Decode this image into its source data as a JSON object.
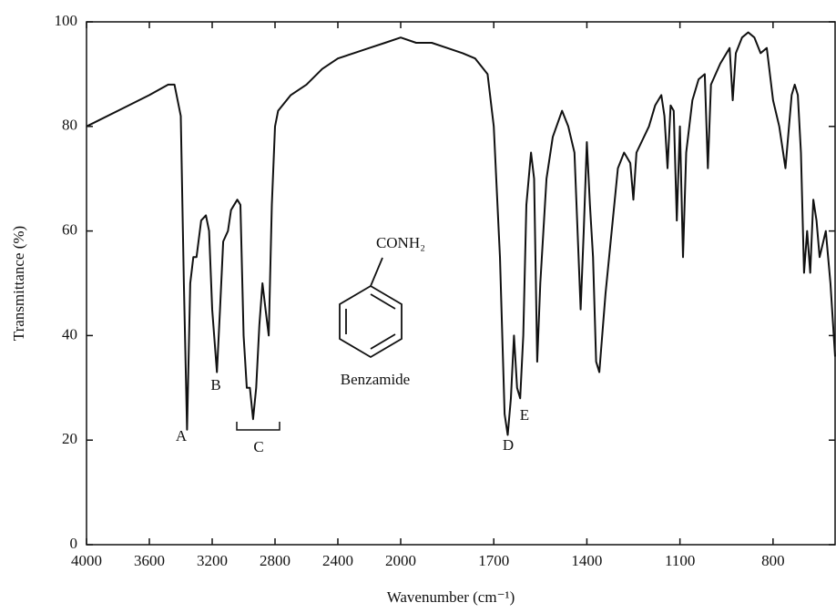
{
  "chart_data": {
    "type": "line",
    "xlabel": "Wavenumber (cm⁻¹)",
    "ylabel": "Transmittance (%)",
    "x_scale_change": 2000,
    "xlim": [
      4000,
      600
    ],
    "xticks": [
      4000,
      3600,
      3200,
      2800,
      2400,
      2000,
      1700,
      1400,
      1100,
      800
    ],
    "ylim": [
      0,
      100
    ],
    "yticks": [
      0,
      20,
      40,
      60,
      80,
      100
    ],
    "color": "#111111",
    "annotations": [
      "A",
      "B",
      "C",
      "D",
      "E",
      "CONH₂",
      "Benzamide"
    ],
    "x": [
      4000,
      3800,
      3600,
      3480,
      3440,
      3400,
      3380,
      3360,
      3340,
      3320,
      3300,
      3270,
      3240,
      3220,
      3200,
      3170,
      3150,
      3130,
      3100,
      3080,
      3040,
      3020,
      3000,
      2980,
      2960,
      2940,
      2920,
      2900,
      2880,
      2860,
      2840,
      2820,
      2800,
      2780,
      2700,
      2600,
      2500,
      2400,
      2300,
      2200,
      2100,
      2000,
      1950,
      1900,
      1850,
      1800,
      1760,
      1720,
      1700,
      1680,
      1665,
      1655,
      1645,
      1635,
      1625,
      1615,
      1605,
      1595,
      1580,
      1570,
      1560,
      1550,
      1530,
      1510,
      1480,
      1460,
      1440,
      1430,
      1420,
      1410,
      1400,
      1390,
      1380,
      1370,
      1360,
      1340,
      1320,
      1300,
      1280,
      1260,
      1250,
      1240,
      1200,
      1180,
      1160,
      1150,
      1140,
      1130,
      1120,
      1110,
      1100,
      1090,
      1080,
      1060,
      1040,
      1020,
      1010,
      1000,
      970,
      940,
      930,
      920,
      900,
      880,
      860,
      840,
      820,
      800,
      780,
      760,
      740,
      730,
      720,
      710,
      700,
      690,
      680,
      670,
      660,
      650,
      630,
      615,
      600
    ],
    "values": [
      80,
      83,
      86,
      88,
      88,
      82,
      50,
      22,
      50,
      55,
      55,
      62,
      63,
      60,
      45,
      33,
      45,
      58,
      60,
      64,
      66,
      65,
      40,
      30,
      30,
      24,
      30,
      42,
      50,
      45,
      40,
      65,
      80,
      83,
      86,
      88,
      91,
      93,
      94,
      95,
      96,
      97,
      96,
      96,
      95,
      94,
      93,
      90,
      80,
      55,
      25,
      21,
      28,
      40,
      30,
      28,
      40,
      65,
      75,
      70,
      35,
      50,
      70,
      78,
      83,
      80,
      75,
      60,
      45,
      60,
      77,
      65,
      55,
      35,
      33,
      48,
      60,
      72,
      75,
      73,
      66,
      75,
      80,
      84,
      86,
      82,
      72,
      84,
      83,
      62,
      80,
      55,
      75,
      85,
      89,
      90,
      72,
      88,
      92,
      95,
      85,
      94,
      97,
      98,
      97,
      94,
      95,
      85,
      80,
      72,
      86,
      88,
      86,
      75,
      52,
      60,
      52,
      66,
      62,
      55,
      60,
      50,
      36
    ]
  }
}
